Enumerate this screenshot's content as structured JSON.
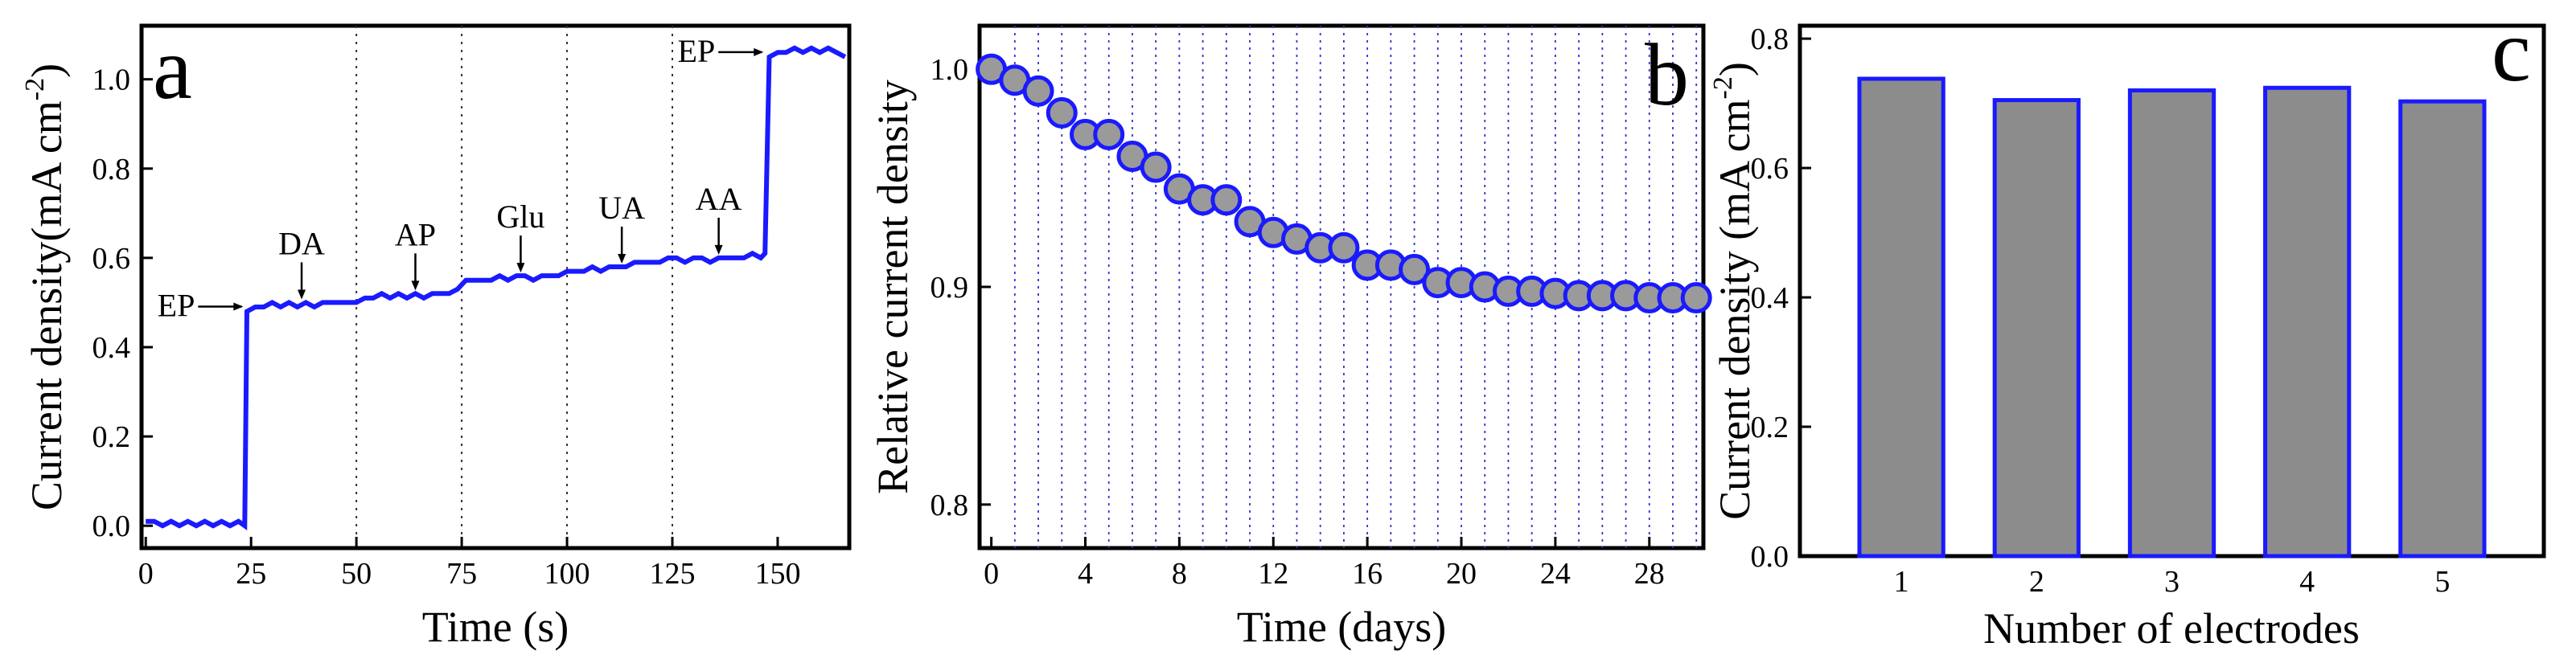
{
  "colors": {
    "line": "#1a1aff",
    "bar_fill": "#8c8c8c",
    "marker_fill": "#9a9a9a",
    "axis": "#000000",
    "grid": "#3333cc"
  },
  "chart_data": [
    {
      "panel": "a",
      "type": "line",
      "xlabel": "Time (s)",
      "ylabel": "Current density(mA cm",
      "ylabel_sup": "-2",
      "ylabel_close": ")",
      "xlim": [
        -1,
        167
      ],
      "ylim": [
        -0.05,
        1.12
      ],
      "xticks": [
        0,
        25,
        50,
        75,
        100,
        125,
        150
      ],
      "yticks": [
        0.0,
        0.2,
        0.4,
        0.6,
        0.8,
        1.0
      ],
      "vlines": [
        50,
        75,
        100,
        125
      ],
      "x": [
        0,
        2,
        4,
        6,
        8,
        10,
        12,
        14,
        16,
        18,
        20,
        22,
        23.5,
        24,
        26,
        28,
        30,
        32,
        34,
        36,
        38,
        40,
        42,
        44,
        46,
        48,
        50,
        52,
        54,
        56,
        58,
        60,
        62,
        64,
        66,
        68,
        70,
        72,
        74,
        75,
        76,
        78,
        80,
        82,
        84,
        86,
        88,
        90,
        92,
        94,
        96,
        98,
        100,
        102,
        104,
        106,
        108,
        110,
        112,
        114,
        116,
        118,
        120,
        122,
        124,
        126,
        128,
        130,
        132,
        134,
        136,
        138,
        140,
        142,
        144,
        146,
        147,
        148,
        150,
        152,
        154,
        156,
        158,
        160,
        162,
        164,
        166
      ],
      "y": [
        0.01,
        0.01,
        0.0,
        0.01,
        0.0,
        0.01,
        0.0,
        0.01,
        0.0,
        0.01,
        0.0,
        0.01,
        0.0,
        0.48,
        0.49,
        0.49,
        0.5,
        0.49,
        0.5,
        0.49,
        0.5,
        0.49,
        0.5,
        0.5,
        0.5,
        0.5,
        0.5,
        0.51,
        0.51,
        0.52,
        0.51,
        0.52,
        0.51,
        0.52,
        0.51,
        0.52,
        0.52,
        0.52,
        0.53,
        0.54,
        0.55,
        0.55,
        0.55,
        0.55,
        0.56,
        0.55,
        0.56,
        0.56,
        0.55,
        0.56,
        0.56,
        0.56,
        0.57,
        0.57,
        0.57,
        0.58,
        0.57,
        0.58,
        0.58,
        0.58,
        0.59,
        0.59,
        0.59,
        0.59,
        0.6,
        0.6,
        0.59,
        0.6,
        0.6,
        0.59,
        0.6,
        0.6,
        0.6,
        0.6,
        0.61,
        0.6,
        0.61,
        1.05,
        1.06,
        1.06,
        1.07,
        1.06,
        1.07,
        1.06,
        1.07,
        1.06,
        1.05
      ],
      "annotations": [
        {
          "text": "EP",
          "x": 23.5,
          "y": 0.48,
          "side": "left"
        },
        {
          "text": "DA",
          "x": 37,
          "y": 0.5,
          "side": "above"
        },
        {
          "text": "AP",
          "x": 64,
          "y": 0.52,
          "side": "above"
        },
        {
          "text": "Glu",
          "x": 89,
          "y": 0.56,
          "side": "above"
        },
        {
          "text": "UA",
          "x": 113,
          "y": 0.58,
          "side": "above"
        },
        {
          "text": "AA",
          "x": 136,
          "y": 0.6,
          "side": "above"
        },
        {
          "text": "EP",
          "x": 147,
          "y": 1.05,
          "side": "left"
        }
      ]
    },
    {
      "panel": "b",
      "type": "scatter",
      "xlabel": "Time (days)",
      "ylabel": "Relative current density",
      "xlim": [
        -0.5,
        30.3
      ],
      "ylim": [
        0.78,
        1.02
      ],
      "xticks": [
        0,
        4,
        8,
        12,
        16,
        20,
        24,
        28
      ],
      "yticks": [
        0.8,
        0.9,
        1.0
      ],
      "vlines": [
        1,
        2,
        3,
        4,
        5,
        6,
        7,
        8,
        9,
        10,
        11,
        12,
        13,
        14,
        15,
        16,
        17,
        18,
        19,
        20,
        21,
        22,
        23,
        24,
        25,
        26,
        27,
        28,
        29,
        30
      ],
      "x": [
        0,
        1,
        2,
        3,
        4,
        5,
        6,
        7,
        8,
        9,
        10,
        11,
        12,
        13,
        14,
        15,
        16,
        17,
        18,
        19,
        20,
        21,
        22,
        23,
        24,
        25,
        26,
        27,
        28,
        29,
        30
      ],
      "y": [
        1.0,
        0.995,
        0.99,
        0.98,
        0.97,
        0.97,
        0.96,
        0.955,
        0.945,
        0.94,
        0.94,
        0.93,
        0.925,
        0.922,
        0.918,
        0.918,
        0.91,
        0.91,
        0.908,
        0.902,
        0.902,
        0.9,
        0.898,
        0.898,
        0.897,
        0.896,
        0.896,
        0.896,
        0.895,
        0.895,
        0.895
      ]
    },
    {
      "panel": "c",
      "type": "bar",
      "xlabel": "Number of electrodes",
      "ylabel": "Current density (mA cm",
      "ylabel_sup": "-2",
      "ylabel_close": ")",
      "categories": [
        "1",
        "2",
        "3",
        "4",
        "5"
      ],
      "values": [
        0.738,
        0.705,
        0.72,
        0.724,
        0.703
      ],
      "ylim": [
        0,
        0.82
      ],
      "yticks": [
        0.0,
        0.2,
        0.4,
        0.6,
        0.8
      ]
    }
  ]
}
